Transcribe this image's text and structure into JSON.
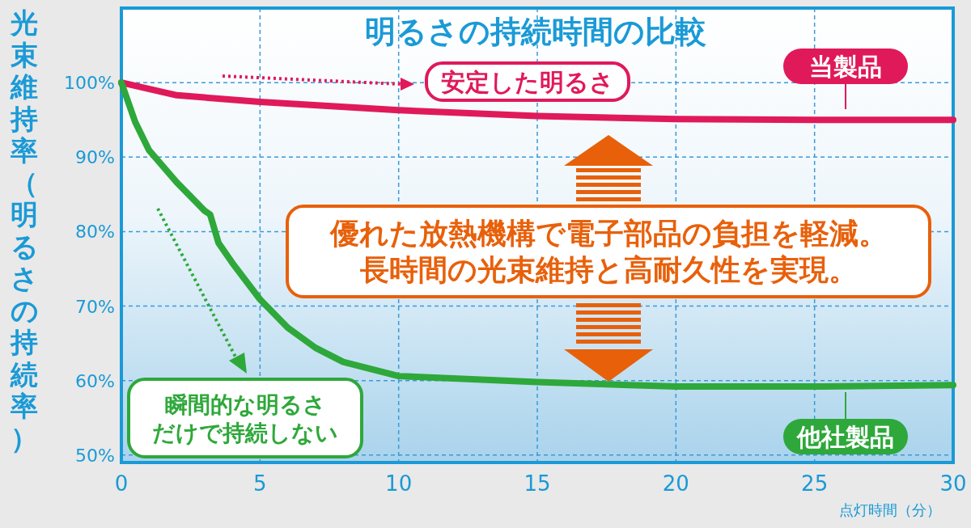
{
  "chart_data": {
    "type": "line",
    "title": "明るさの持続時間の比較",
    "xlabel": "点灯時間（分）",
    "ylabel": "光束維持率（明るさの持続率）",
    "xlim": [
      0,
      30
    ],
    "ylim": [
      49,
      110
    ],
    "xticks": [
      0,
      5,
      10,
      15,
      20,
      25,
      30
    ],
    "yticks": [
      {
        "value": 50,
        "label": "50%"
      },
      {
        "value": 60,
        "label": "60%"
      },
      {
        "value": 70,
        "label": "70%"
      },
      {
        "value": 80,
        "label": "80%"
      },
      {
        "value": 90,
        "label": "90%"
      },
      {
        "value": 100,
        "label": "100%"
      }
    ],
    "grid": true,
    "legend": "right",
    "series": [
      {
        "name": "当製品",
        "color": "#e0195a",
        "x": [
          0,
          2,
          5,
          10,
          15,
          20,
          25,
          30
        ],
        "values": [
          100,
          98.3,
          97.4,
          96.3,
          95.5,
          95.1,
          95.0,
          95.0
        ]
      },
      {
        "name": "他社製品",
        "color": "#2ea83a",
        "x": [
          0,
          0.5,
          1,
          2,
          3,
          3.2,
          3.5,
          4,
          5,
          6,
          7,
          8,
          10,
          15,
          20,
          25,
          30
        ],
        "values": [
          100,
          94.7,
          90.9,
          86.6,
          82.8,
          82.3,
          78.5,
          75.8,
          70.9,
          67.1,
          64.4,
          62.5,
          60.6,
          59.8,
          59.2,
          59.2,
          59.4
        ]
      }
    ],
    "annotations": [
      "安定した明るさ",
      "瞬間的な明るさだけで持続しない",
      "優れた放熱機構で電子部品の負担を軽減。長時間の光束維持と高耐久性を実現。"
    ]
  }
}
